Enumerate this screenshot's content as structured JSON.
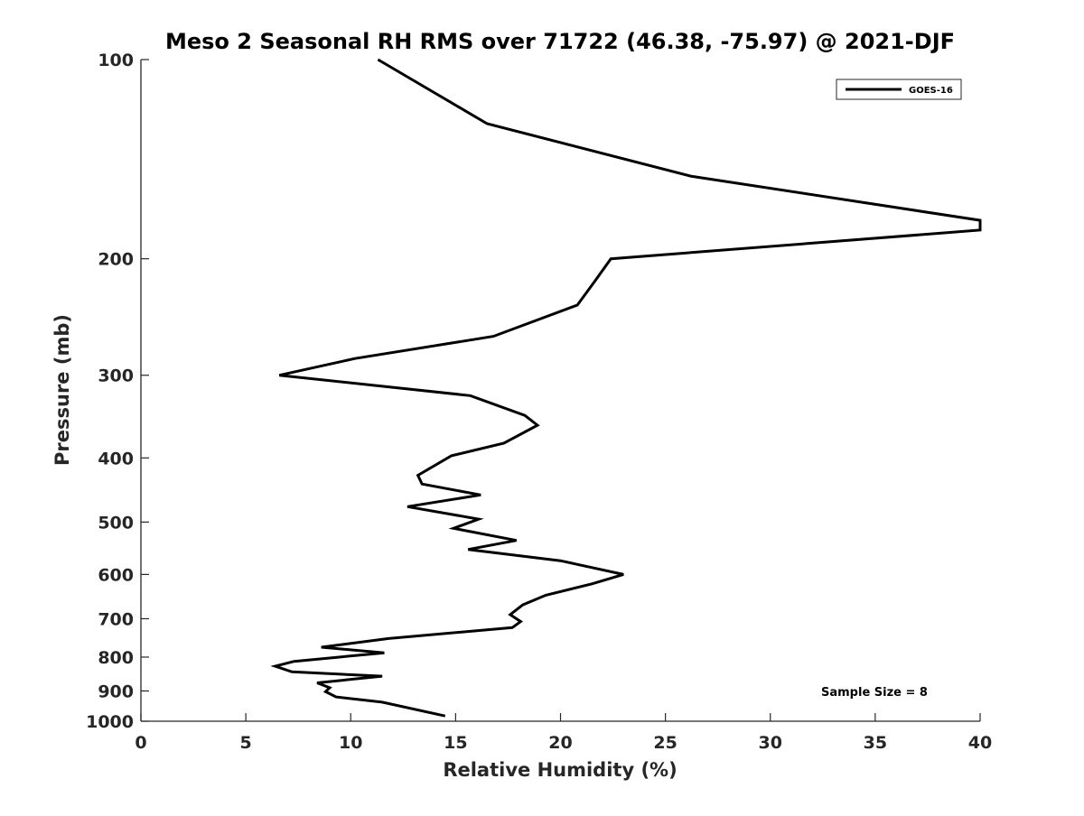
{
  "chart_data": {
    "type": "line",
    "title": "Meso 2 Seasonal RH RMS over 71722 (46.38, -75.97) @ 2021-DJF",
    "xlabel": "Relative Humidity (%)",
    "ylabel": "Pressure (mb)",
    "xlim": [
      0,
      40
    ],
    "ylim": [
      100,
      1000
    ],
    "y_scale": "log",
    "y_reversed": true,
    "x_ticks": [
      0,
      5,
      10,
      15,
      20,
      25,
      30,
      35,
      40
    ],
    "y_ticks": [
      100,
      200,
      300,
      400,
      500,
      600,
      700,
      800,
      900,
      1000
    ],
    "grid": false,
    "legend": {
      "position": "top-right",
      "entries": [
        "GOES-16"
      ]
    },
    "annotation": "Sample Size = 8",
    "series": [
      {
        "name": "GOES-16",
        "color": "#000000",
        "x": [
          11.3,
          16.5,
          26.2,
          40.0,
          40.0,
          22.4,
          21.6,
          20.8,
          16.8,
          10.2,
          6.6,
          15.7,
          18.3,
          18.9,
          17.3,
          14.8,
          13.2,
          13.4,
          16.2,
          12.7,
          16.1,
          14.9,
          17.9,
          15.6,
          20.0,
          23.0,
          21.5,
          19.3,
          18.2,
          17.6,
          18.1,
          17.7,
          11.8,
          8.6,
          11.6,
          7.3,
          6.4,
          7.2,
          11.5,
          8.4,
          9.0,
          8.8,
          9.3,
          11.5,
          14.5
        ],
        "y": [
          100,
          125,
          150,
          175,
          181,
          200,
          217,
          235,
          262,
          283,
          300,
          322,
          345,
          357,
          380,
          397,
          425,
          438,
          455,
          474,
          495,
          511,
          533,
          550,
          572,
          600,
          620,
          645,
          667,
          690,
          707,
          722,
          750,
          773,
          788,
          812,
          826,
          842,
          855,
          875,
          890,
          902,
          919,
          936,
          982
        ]
      }
    ]
  }
}
